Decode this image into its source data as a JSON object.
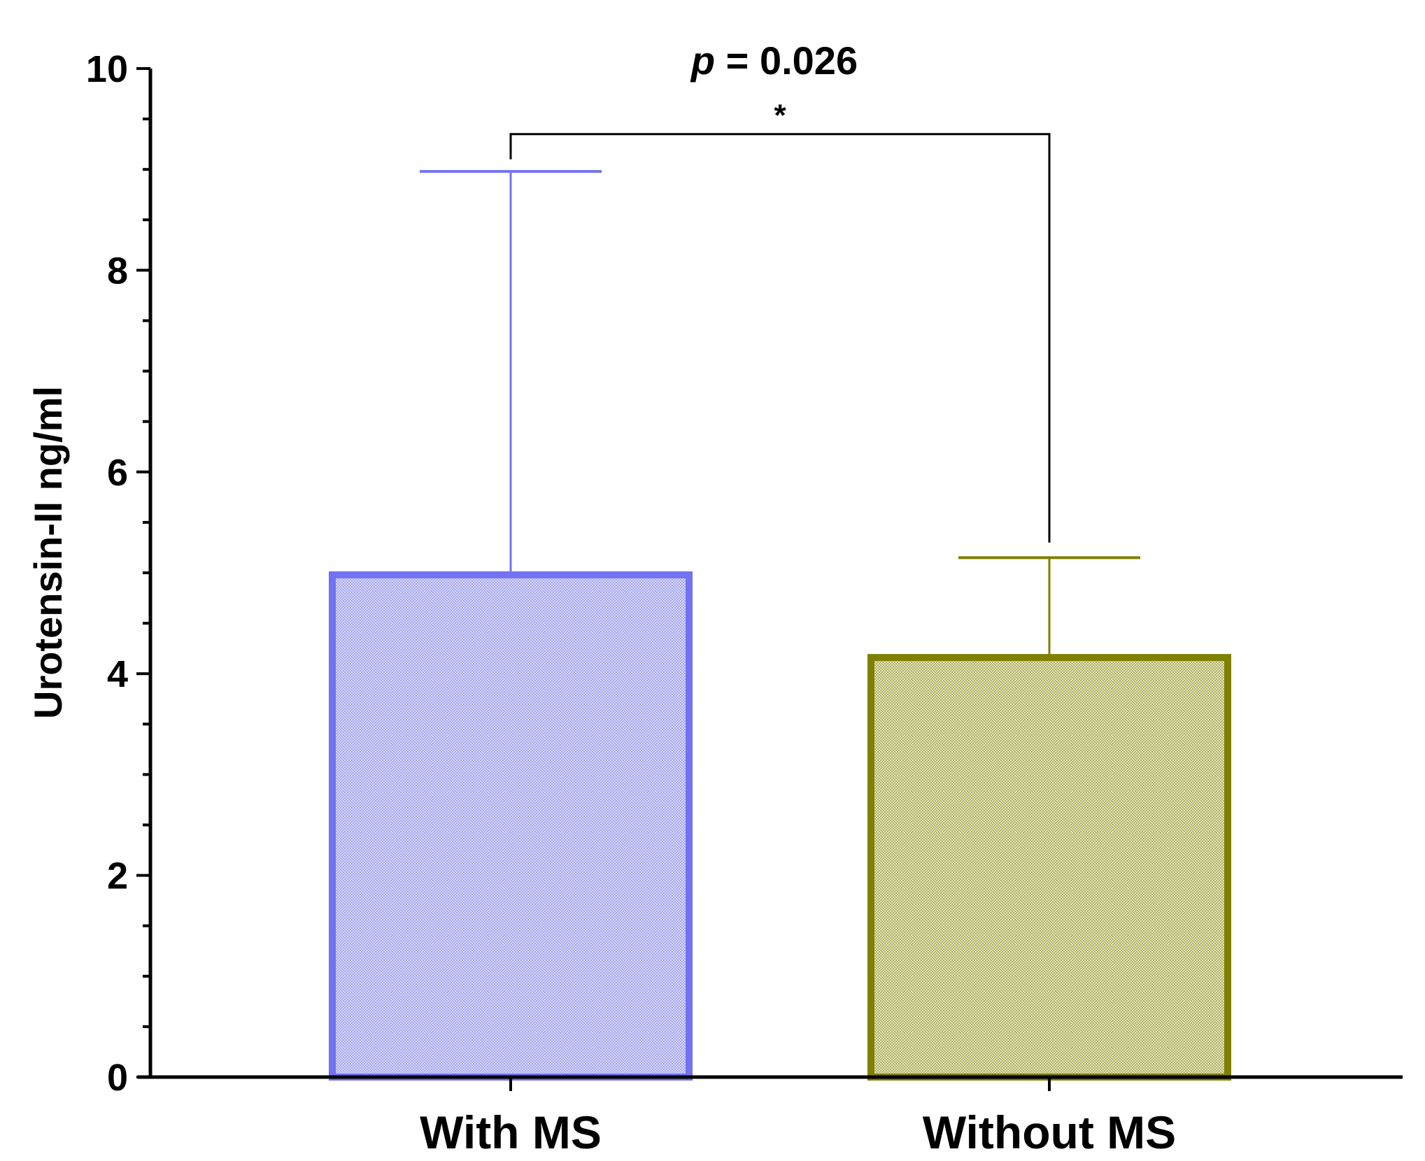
{
  "chart_data": {
    "type": "bar",
    "categories": [
      "With MS",
      "Without MS"
    ],
    "values": [
      4.98,
      4.16
    ],
    "error_upper": [
      8.98,
      5.15
    ],
    "ylabel": "Urotensin-II ng/ml",
    "xlabel": "",
    "ylim": [
      0,
      10
    ],
    "yticks": [
      "0",
      "2",
      "4",
      "6",
      "8",
      "10"
    ],
    "annotation": {
      "p_prefix": "p",
      "p_value": " = 0.026",
      "significance": "*"
    },
    "colors": {
      "with_ms_edge": "#7272F2",
      "with_ms_fill": "#C8C8F4",
      "without_ms_edge": "#7F7F00",
      "without_ms_fill": "#D2D2A2",
      "axis": "#000000"
    },
    "grid": false,
    "legend": "none"
  }
}
